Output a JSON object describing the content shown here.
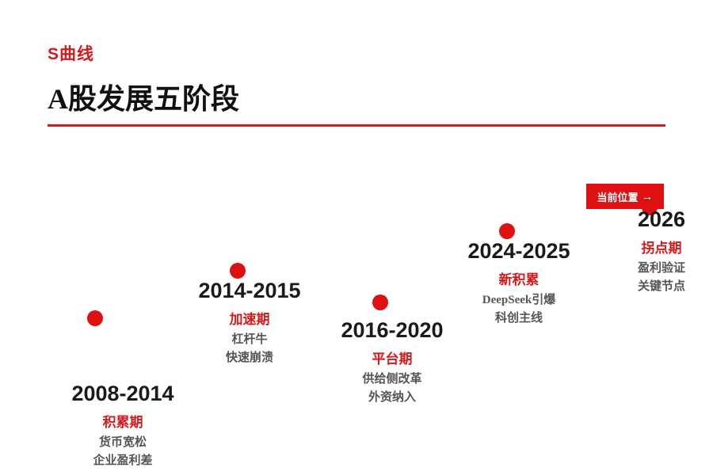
{
  "header": {
    "kicker": "S曲线",
    "title": "A股发展五阶段"
  },
  "current_marker": {
    "label": "当前位置",
    "arrow": "→"
  },
  "colors": {
    "accent": "#d7191c",
    "dot": "#dd1111",
    "text_dark": "#1a1a1a",
    "text_muted": "#555555"
  },
  "stages": [
    {
      "years": "2008-2014",
      "phase": "积累期",
      "desc": [
        "货币宽松",
        "企业盈利差"
      ]
    },
    {
      "years": "2014-2015",
      "phase": "加速期",
      "desc": [
        "杠杆牛",
        "快速崩溃"
      ]
    },
    {
      "years": "2016-2020",
      "phase": "平台期",
      "desc": [
        "供给侧改革",
        "外资纳入"
      ]
    },
    {
      "years": "2024-2025",
      "phase": "新积累",
      "desc": [
        "DeepSeek引爆",
        "科创主线"
      ]
    },
    {
      "years": "2026",
      "phase": "拐点期",
      "desc": [
        "盈利验证",
        "关键节点"
      ]
    }
  ]
}
